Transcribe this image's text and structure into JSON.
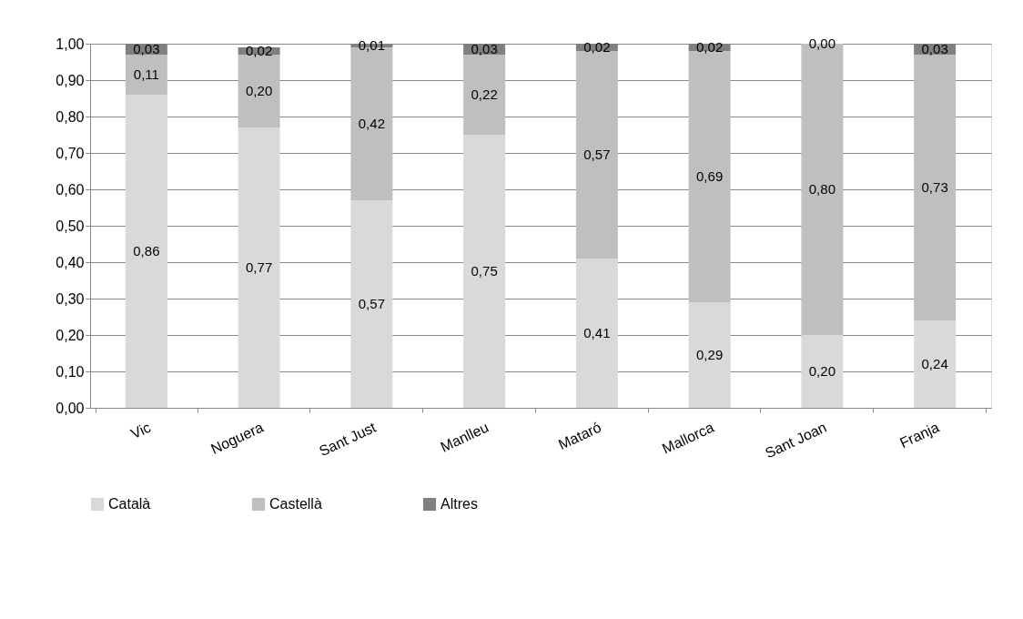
{
  "chart_data": {
    "type": "bar",
    "stacked": true,
    "categories": [
      "Vic",
      "Noguera",
      "Sant Just",
      "Manlleu",
      "Mataró",
      "Mallorca",
      "Sant Joan",
      "Franja"
    ],
    "series": [
      {
        "name": "Català",
        "color": "#d9d9d9",
        "values": [
          0.86,
          0.77,
          0.57,
          0.75,
          0.41,
          0.29,
          0.2,
          0.24
        ],
        "value_labels": [
          "0,86",
          "0,77",
          "0,57",
          "0,75",
          "0,41",
          "0,29",
          "0,20",
          "0,24"
        ]
      },
      {
        "name": "Castellà",
        "color": "#bfbfbf",
        "values": [
          0.11,
          0.2,
          0.42,
          0.22,
          0.57,
          0.69,
          0.8,
          0.73
        ],
        "value_labels": [
          "0,11",
          "0,20",
          "0,42",
          "0,22",
          "0,57",
          "0,69",
          "0,80",
          "0,73"
        ]
      },
      {
        "name": "Altres",
        "color": "#808080",
        "values": [
          0.03,
          0.02,
          0.01,
          0.03,
          0.02,
          0.02,
          0.0,
          0.03
        ],
        "value_labels": [
          "0,03",
          "0,02",
          "0,01",
          "0,03",
          "0,02",
          "0,02",
          "0,00",
          "0,03"
        ]
      }
    ],
    "ylim": [
      0,
      1
    ],
    "yticks": [
      {
        "value": 0,
        "label": "0,00"
      },
      {
        "value": 0.1,
        "label": "0,10"
      },
      {
        "value": 0.2,
        "label": "0,20"
      },
      {
        "value": 0.3,
        "label": "0,30"
      },
      {
        "value": 0.4,
        "label": "0,40"
      },
      {
        "value": 0.5,
        "label": "0,50"
      },
      {
        "value": 0.6,
        "label": "0,60"
      },
      {
        "value": 0.7,
        "label": "0,70"
      },
      {
        "value": 0.8,
        "label": "0,80"
      },
      {
        "value": 0.9,
        "label": "0,90"
      },
      {
        "value": 1,
        "label": "1,00"
      }
    ],
    "grid": "y",
    "legend": "bottom"
  }
}
